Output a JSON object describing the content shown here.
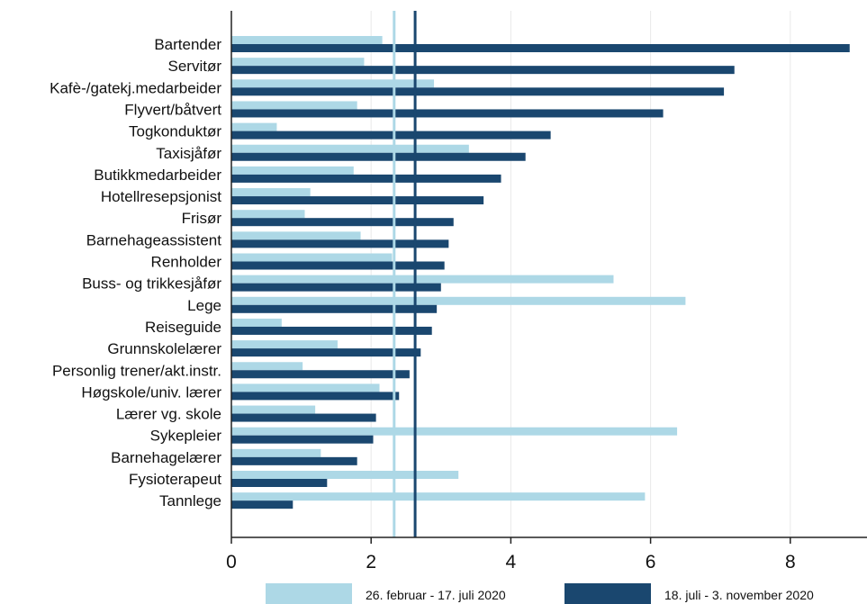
{
  "chart_data": {
    "type": "bar",
    "orientation": "horizontal",
    "categories": [
      "Bartender",
      "Servitør",
      "Kafè-/gatekj.medarbeider",
      "Flyvert/båtvert",
      "Togkonduktør",
      "Taxisjåfør",
      "Butikkmedarbeider",
      "Hotellresepsjonist",
      "Frisør",
      "Barnehageassistent",
      "Renholder",
      "Buss- og trikkesjåfør",
      "Lege",
      "Reiseguide",
      "Grunnskolelærer",
      "Personlig trener/akt.instr.",
      "Høgskole/univ. lærer",
      "Lærer vg. skole",
      "Sykepleier",
      "Barnehagelærer",
      "Fysioterapeut",
      "Tannlege"
    ],
    "series": [
      {
        "name": "26. februar - 17. juli 2020",
        "color": "#add8e6",
        "values": [
          2.16,
          1.9,
          2.9,
          1.8,
          0.65,
          3.4,
          1.75,
          1.13,
          1.05,
          1.85,
          2.3,
          5.47,
          6.5,
          0.72,
          1.52,
          1.02,
          2.12,
          1.2,
          6.38,
          1.28,
          3.25,
          5.92
        ]
      },
      {
        "name": "18. juli - 3. november 2020",
        "color": "#1a476f",
        "values": [
          8.85,
          7.2,
          7.05,
          6.18,
          4.57,
          4.21,
          3.86,
          3.61,
          3.18,
          3.11,
          3.05,
          3.0,
          2.94,
          2.87,
          2.71,
          2.55,
          2.4,
          2.07,
          2.03,
          1.8,
          1.37,
          0.88
        ]
      }
    ],
    "reference_lines": [
      {
        "series": "26. februar - 17. juli 2020",
        "value": 2.33,
        "color": "#add8e6"
      },
      {
        "series": "18. juli - 3. november 2020",
        "value": 2.63,
        "color": "#1a476f"
      }
    ],
    "x_ticks": [
      0,
      2,
      4,
      6,
      8
    ],
    "xlim": [
      0,
      9
    ],
    "grid": "vertical",
    "legend_position": "bottom"
  }
}
